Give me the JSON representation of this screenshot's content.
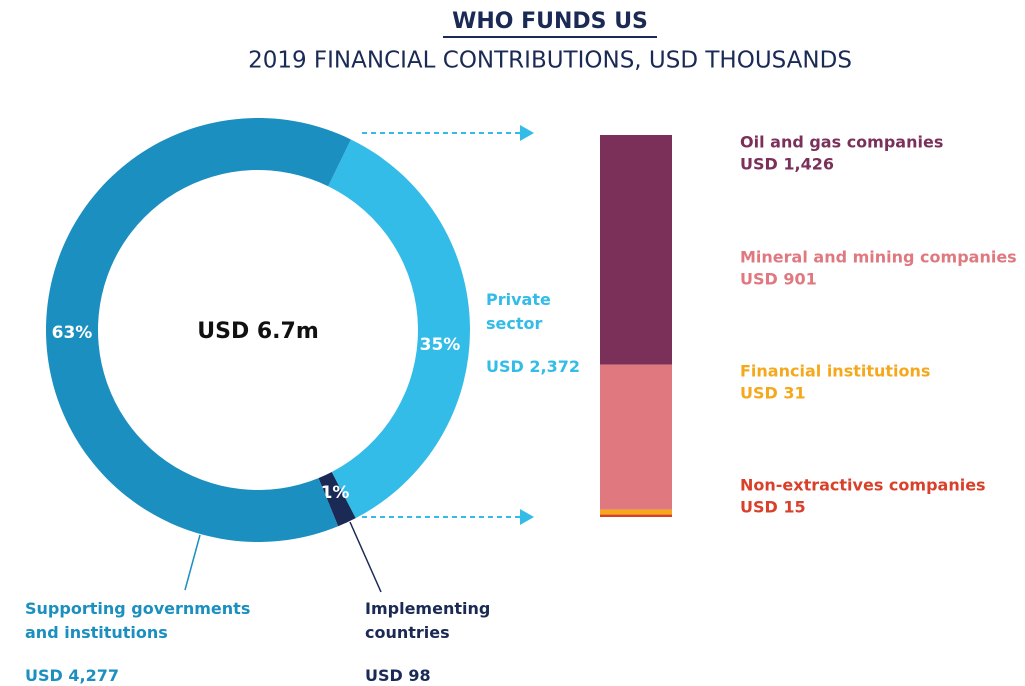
{
  "chart_data": [
    {
      "type": "pie",
      "title": "WHO FUNDS US",
      "subtitle": "2019 FINANCIAL CONTRIBUTIONS, USD THOUSANDS",
      "center_label": "USD 6.7m",
      "categories": [
        "Private sector",
        "Implementing countries",
        "Supporting governments and institutions"
      ],
      "values": [
        2372,
        98,
        4277
      ],
      "value_labels": [
        "USD 2,372",
        "USD 98",
        "USD 4,277"
      ],
      "percent_labels": [
        "35%",
        "1%",
        "63%"
      ],
      "colors": [
        "#33bce8",
        "#1a2a55",
        "#1b8fbf"
      ]
    },
    {
      "type": "bar",
      "stacked": true,
      "series": [
        {
          "name": "Oil and gas companies",
          "color": "#7a3059",
          "values": [
            1426
          ],
          "value_labels": [
            "USD 1,426"
          ]
        },
        {
          "name": "Mineral and mining companies",
          "color": "#e07880",
          "values": [
            901
          ],
          "value_labels": [
            "USD 901"
          ]
        },
        {
          "name": "Financial institutions",
          "color": "#f5a81c",
          "values": [
            31
          ],
          "value_labels": [
            "USD 31"
          ]
        },
        {
          "name": "Non-extractives companies",
          "color": "#d9402a",
          "values": [
            15
          ],
          "value_labels": [
            "USD 15"
          ]
        }
      ]
    }
  ]
}
